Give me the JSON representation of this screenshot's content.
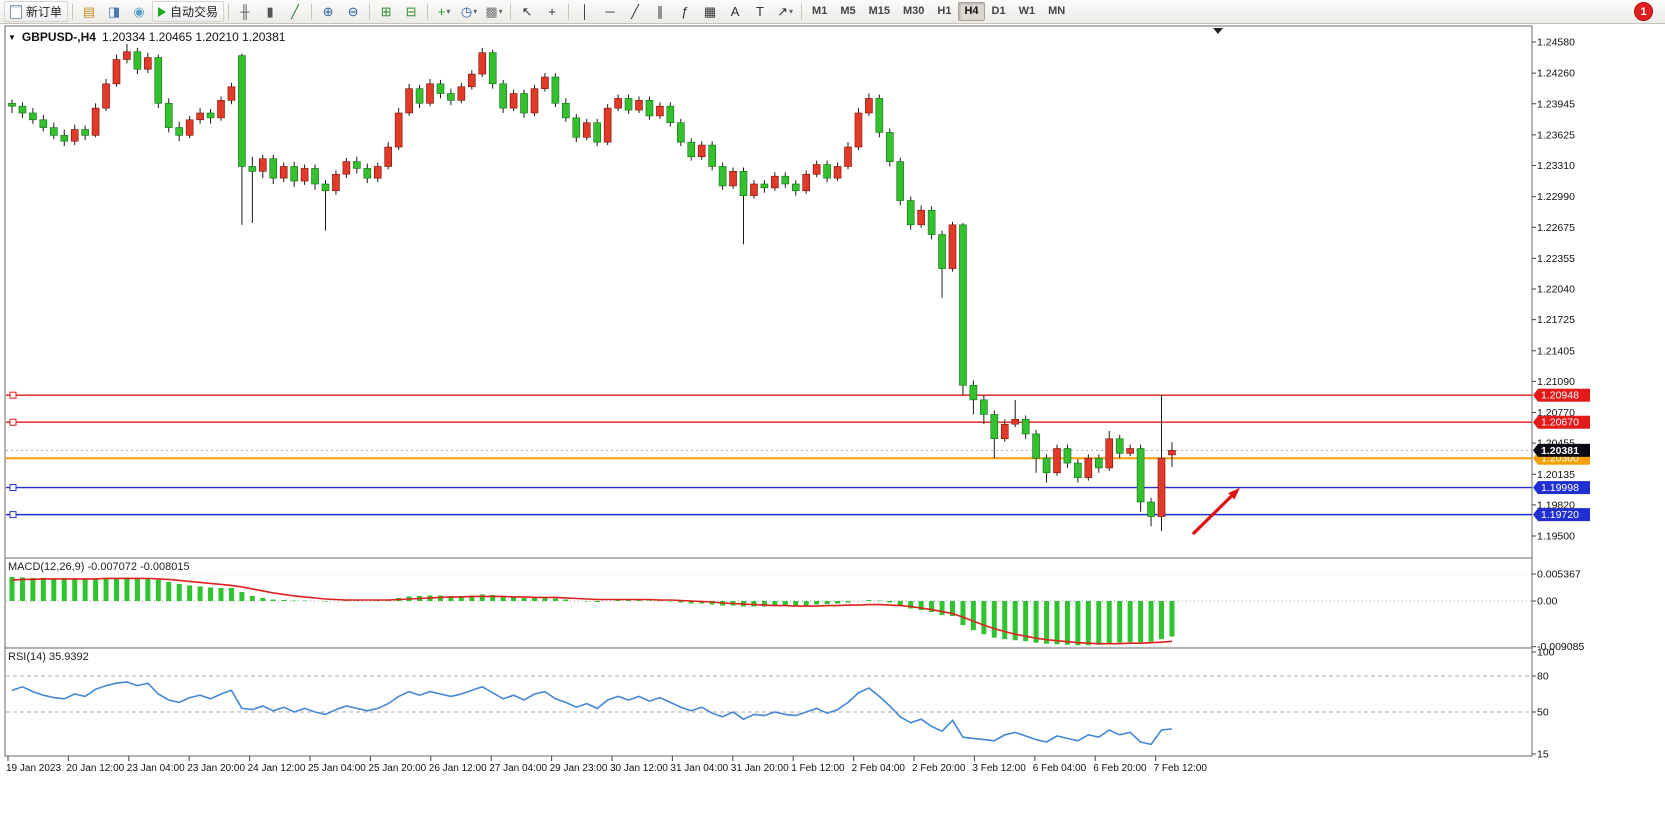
{
  "toolbar": {
    "items": [
      {
        "t": "btn",
        "name": "new-order-button",
        "label": "新订单",
        "icon": "page"
      },
      {
        "t": "sep"
      },
      {
        "t": "icon",
        "name": "charts-stack-icon",
        "g": "▤",
        "c": "#c79028"
      },
      {
        "t": "icon",
        "name": "market-watch-icon",
        "g": "◨",
        "c": "#4a7ab5"
      },
      {
        "t": "icon",
        "name": "navigator-icon",
        "g": "◉",
        "c": "#58a0c8"
      },
      {
        "t": "btn",
        "name": "autotrading-button",
        "label": "自动交易",
        "icon": "play"
      },
      {
        "t": "sep"
      },
      {
        "t": "icon",
        "name": "bar-chart-icon",
        "g": "╫",
        "c": "#555"
      },
      {
        "t": "icon",
        "name": "candlestick-chart-icon",
        "g": "▮",
        "c": "#555"
      },
      {
        "t": "icon",
        "name": "line-chart-icon",
        "g": "╱",
        "c": "#2e7d32"
      },
      {
        "t": "sep"
      },
      {
        "t": "icon",
        "name": "zoom-in-icon",
        "g": "⊕",
        "c": "#2b5fa5"
      },
      {
        "t": "icon",
        "name": "zoom-out-icon",
        "g": "⊖",
        "c": "#2b5fa5"
      },
      {
        "t": "sep"
      },
      {
        "t": "icon",
        "name": "tile-windows-icon",
        "g": "⊞",
        "c": "#2e8b2e"
      },
      {
        "t": "icon",
        "name": "cascade-windows-icon",
        "g": "⊟",
        "c": "#2e8b2e"
      },
      {
        "t": "sep"
      },
      {
        "t": "icon",
        "name": "add-indicator-icon",
        "g": "+",
        "c": "#1fa01f",
        "dd": true
      },
      {
        "t": "icon",
        "name": "period-icon",
        "g": "◷",
        "c": "#2b5fa5",
        "dd": true
      },
      {
        "t": "icon",
        "name": "template-icon",
        "g": "▩",
        "c": "#777",
        "dd": true
      },
      {
        "t": "sep"
      },
      {
        "t": "icon",
        "name": "cursor-icon",
        "g": "↖",
        "c": "#333"
      },
      {
        "t": "icon",
        "name": "crosshair-icon",
        "g": "+",
        "c": "#333"
      },
      {
        "t": "sep"
      },
      {
        "t": "icon",
        "name": "vertical-line-icon",
        "g": "│",
        "c": "#333"
      },
      {
        "t": "icon",
        "name": "horizontal-line-icon",
        "g": "─",
        "c": "#333"
      },
      {
        "t": "icon",
        "name": "trendline-icon",
        "g": "╱",
        "c": "#333"
      },
      {
        "t": "icon",
        "name": "equidistant-channel-icon",
        "g": "∥",
        "c": "#333"
      },
      {
        "t": "icon",
        "name": "fibonacci-icon",
        "g": "ƒ",
        "c": "#333"
      },
      {
        "t": "icon",
        "name": "shapes-icon",
        "g": "▦",
        "c": "#333"
      },
      {
        "t": "icon",
        "name": "text-icon",
        "g": "A",
        "c": "#333"
      },
      {
        "t": "icon",
        "name": "text-label-icon",
        "g": "T",
        "c": "#333"
      },
      {
        "t": "icon",
        "name": "arrows-tool-icon",
        "g": "↗",
        "c": "#333",
        "dd": true
      },
      {
        "t": "sep"
      }
    ],
    "timeframes": [
      "M1",
      "M5",
      "M15",
      "M30",
      "H1",
      "H4",
      "D1",
      "W1",
      "MN"
    ],
    "active_timeframe": "H4",
    "notification_count": "1"
  },
  "chart": {
    "symbol_header": "GBPUSD-,H4",
    "ohlc_readout": "1.20334 1.20465 1.20210 1.20381",
    "price_axis_labels": [
      "1.24580",
      "1.24260",
      "1.23945",
      "1.23625",
      "1.23310",
      "1.22990",
      "1.22675",
      "1.22355",
      "1.22040",
      "1.21725",
      "1.21405",
      "1.21090",
      "1.20770",
      "1.20455",
      "1.20135",
      "1.19820",
      "1.19500"
    ],
    "time_axis_labels": [
      "19 Jan 2023",
      "20 Jan 12:00",
      "23 Jan 04:00",
      "23 Jan 20:00",
      "24 Jan 12:00",
      "25 Jan 04:00",
      "25 Jan 20:00",
      "26 Jan 12:00",
      "27 Jan 04:00",
      "29 Jan 23:00",
      "30 Jan 12:00",
      "31 Jan 04:00",
      "31 Jan 20:00",
      "1 Feb 12:00",
      "2 Feb 04:00",
      "2 Feb 20:00",
      "3 Feb 12:00",
      "6 Feb 04:00",
      "6 Feb 20:00",
      "7 Feb 12:00"
    ],
    "hlines": [
      {
        "price": 1.20948,
        "label": "1.20948",
        "color": "#e21a1a"
      },
      {
        "price": 1.2067,
        "label": "1.20670",
        "color": "#e21a1a"
      },
      {
        "price": 1.203,
        "label": "1.20300",
        "color": "#f0a000"
      },
      {
        "price": 1.19998,
        "label": "1.19998",
        "color": "#2030d0"
      },
      {
        "price": 1.1972,
        "label": "1.19720",
        "color": "#2030d0"
      }
    ],
    "current_price": {
      "value": 1.20381,
      "label": "1.20381",
      "box_color": "#0a0a14"
    }
  },
  "chart_data": {
    "type": "candlestick",
    "symbol": "GBPUSD",
    "timeframe": "H4",
    "up_color": "#e23a28",
    "down_color": "#35c02f",
    "price_range": [
      1.195,
      1.2458
    ],
    "candles": [
      [
        1.2395,
        1.2399,
        1.2385,
        1.2392
      ],
      [
        1.2392,
        1.2396,
        1.238,
        1.2385
      ],
      [
        1.2385,
        1.239,
        1.2374,
        1.2378
      ],
      [
        1.2378,
        1.2383,
        1.2366,
        1.237
      ],
      [
        1.237,
        1.2375,
        1.2358,
        1.2362
      ],
      [
        1.2362,
        1.2368,
        1.2351,
        1.2356
      ],
      [
        1.2356,
        1.2373,
        1.2352,
        1.2368
      ],
      [
        1.2368,
        1.2372,
        1.2357,
        1.2362
      ],
      [
        1.2362,
        1.2395,
        1.236,
        1.239
      ],
      [
        1.239,
        1.242,
        1.2387,
        1.2415
      ],
      [
        1.2415,
        1.2445,
        1.2412,
        1.244
      ],
      [
        1.244,
        1.2456,
        1.2436,
        1.2448
      ],
      [
        1.2448,
        1.2452,
        1.2425,
        1.243
      ],
      [
        1.243,
        1.2447,
        1.2426,
        1.2442
      ],
      [
        1.2442,
        1.2445,
        1.239,
        1.2395
      ],
      [
        1.2395,
        1.24,
        1.2365,
        1.237
      ],
      [
        1.237,
        1.2376,
        1.2356,
        1.2362
      ],
      [
        1.2362,
        1.2382,
        1.2359,
        1.2378
      ],
      [
        1.2378,
        1.239,
        1.2374,
        1.2385
      ],
      [
        1.2385,
        1.2389,
        1.2374,
        1.238
      ],
      [
        1.238,
        1.2402,
        1.2377,
        1.2398
      ],
      [
        1.2398,
        1.2416,
        1.2394,
        1.2412
      ],
      [
        1.2444,
        1.2446,
        1.227,
        1.233
      ],
      [
        1.233,
        1.234,
        1.2272,
        1.2325
      ],
      [
        1.2325,
        1.2342,
        1.2318,
        1.2338
      ],
      [
        1.2338,
        1.2342,
        1.2312,
        1.2318
      ],
      [
        1.2318,
        1.2334,
        1.2314,
        1.233
      ],
      [
        1.233,
        1.2335,
        1.2309,
        1.2315
      ],
      [
        1.2315,
        1.2332,
        1.2311,
        1.2328
      ],
      [
        1.2328,
        1.2332,
        1.2306,
        1.2312
      ],
      [
        1.2312,
        1.2316,
        1.2264,
        1.2305
      ],
      [
        1.2305,
        1.2326,
        1.2301,
        1.2322
      ],
      [
        1.2322,
        1.2339,
        1.2318,
        1.2335
      ],
      [
        1.2335,
        1.234,
        1.2323,
        1.2328
      ],
      [
        1.2328,
        1.2333,
        1.2313,
        1.2318
      ],
      [
        1.2318,
        1.2334,
        1.2314,
        1.233
      ],
      [
        1.233,
        1.2355,
        1.2327,
        1.235
      ],
      [
        1.235,
        1.239,
        1.2347,
        1.2385
      ],
      [
        1.2385,
        1.2415,
        1.2382,
        1.241
      ],
      [
        1.241,
        1.2414,
        1.239,
        1.2395
      ],
      [
        1.2395,
        1.242,
        1.2392,
        1.2415
      ],
      [
        1.2415,
        1.2419,
        1.24,
        1.2405
      ],
      [
        1.2405,
        1.241,
        1.2393,
        1.2398
      ],
      [
        1.2398,
        1.2416,
        1.2395,
        1.2412
      ],
      [
        1.2412,
        1.2429,
        1.2409,
        1.2425
      ],
      [
        1.2425,
        1.2452,
        1.2422,
        1.2447
      ],
      [
        1.2447,
        1.245,
        1.241,
        1.2415
      ],
      [
        1.2415,
        1.2419,
        1.2385,
        1.239
      ],
      [
        1.239,
        1.2409,
        1.2387,
        1.2405
      ],
      [
        1.2405,
        1.2409,
        1.238,
        1.2385
      ],
      [
        1.2385,
        1.2414,
        1.2382,
        1.241
      ],
      [
        1.241,
        1.2426,
        1.2407,
        1.2422
      ],
      [
        1.2422,
        1.2426,
        1.2391,
        1.2395
      ],
      [
        1.2395,
        1.24,
        1.2376,
        1.238
      ],
      [
        1.238,
        1.2384,
        1.2355,
        1.236
      ],
      [
        1.236,
        1.2379,
        1.2357,
        1.2375
      ],
      [
        1.2375,
        1.2379,
        1.2351,
        1.2355
      ],
      [
        1.2355,
        1.2394,
        1.2352,
        1.239
      ],
      [
        1.239,
        1.2404,
        1.2387,
        1.24
      ],
      [
        1.24,
        1.2404,
        1.2384,
        1.2388
      ],
      [
        1.2388,
        1.2402,
        1.2385,
        1.2398
      ],
      [
        1.2398,
        1.2402,
        1.2378,
        1.2382
      ],
      [
        1.2382,
        1.2396,
        1.2379,
        1.2392
      ],
      [
        1.2392,
        1.2396,
        1.2371,
        1.2375
      ],
      [
        1.2375,
        1.2379,
        1.2351,
        1.2355
      ],
      [
        1.2355,
        1.2359,
        1.2336,
        1.234
      ],
      [
        1.234,
        1.2356,
        1.2337,
        1.2352
      ],
      [
        1.2352,
        1.2356,
        1.2326,
        1.233
      ],
      [
        1.233,
        1.2334,
        1.2306,
        1.231
      ],
      [
        1.231,
        1.2329,
        1.2307,
        1.2325
      ],
      [
        1.2325,
        1.2329,
        1.225,
        1.23
      ],
      [
        1.23,
        1.2316,
        1.2297,
        1.2312
      ],
      [
        1.2312,
        1.2316,
        1.2303,
        1.2308
      ],
      [
        1.2308,
        1.2324,
        1.2305,
        1.232
      ],
      [
        1.232,
        1.2324,
        1.2308,
        1.2312
      ],
      [
        1.2312,
        1.2316,
        1.23,
        1.2305
      ],
      [
        1.2305,
        1.2326,
        1.2302,
        1.2322
      ],
      [
        1.2322,
        1.2336,
        1.2319,
        1.2332
      ],
      [
        1.2332,
        1.2336,
        1.2314,
        1.2318
      ],
      [
        1.2318,
        1.2334,
        1.2315,
        1.233
      ],
      [
        1.233,
        1.2355,
        1.2327,
        1.235
      ],
      [
        1.235,
        1.239,
        1.2347,
        1.2385
      ],
      [
        1.2385,
        1.2405,
        1.2382,
        1.24
      ],
      [
        1.24,
        1.2404,
        1.236,
        1.2365
      ],
      [
        1.2365,
        1.2369,
        1.233,
        1.2335
      ],
      [
        1.2335,
        1.2339,
        1.229,
        1.2295
      ],
      [
        1.2295,
        1.2299,
        1.2265,
        1.227
      ],
      [
        1.227,
        1.229,
        1.2267,
        1.2285
      ],
      [
        1.2285,
        1.2289,
        1.2255,
        1.226
      ],
      [
        1.226,
        1.2264,
        1.2195,
        1.2225
      ],
      [
        1.2225,
        1.2273,
        1.2222,
        1.227
      ],
      [
        1.227,
        1.2272,
        1.2095,
        1.2105
      ],
      [
        1.2105,
        1.211,
        1.2075,
        1.209
      ],
      [
        1.209,
        1.2095,
        1.2065,
        1.2075
      ],
      [
        1.2075,
        1.2079,
        1.203,
        1.205
      ],
      [
        1.205,
        1.207,
        1.2047,
        1.2065
      ],
      [
        1.2065,
        1.209,
        1.2062,
        1.207
      ],
      [
        1.207,
        1.2074,
        1.205,
        1.2055
      ],
      [
        1.2055,
        1.2059,
        1.2015,
        1.203
      ],
      [
        1.203,
        1.2034,
        1.2005,
        1.2015
      ],
      [
        1.2015,
        1.2044,
        1.2012,
        1.204
      ],
      [
        1.204,
        1.2044,
        1.202,
        1.2025
      ],
      [
        1.2025,
        1.2029,
        1.2005,
        1.201
      ],
      [
        1.201,
        1.2034,
        1.2007,
        1.203
      ],
      [
        1.203,
        1.2034,
        1.2015,
        1.202
      ],
      [
        1.202,
        1.2058,
        1.2017,
        1.205
      ],
      [
        1.205,
        1.2054,
        1.203,
        1.2035
      ],
      [
        1.2035,
        1.2044,
        1.2032,
        1.204
      ],
      [
        1.204,
        1.2044,
        1.1975,
        1.1985
      ],
      [
        1.1985,
        1.1989,
        1.196,
        1.197
      ],
      [
        1.197,
        1.2095,
        1.1955,
        1.203
      ],
      [
        1.20334,
        1.20465,
        1.2021,
        1.20381
      ]
    ],
    "macd": {
      "name_label": "MACD(12,26,9)",
      "values_label": "-0.007072 -0.008015",
      "axis_labels": [
        "0.005367",
        "0.00",
        "-0.009085"
      ],
      "histogram": [
        0.0048,
        0.0047,
        0.0046,
        0.0046,
        0.0045,
        0.0044,
        0.0043,
        0.0043,
        0.0044,
        0.0045,
        0.0046,
        0.0047,
        0.0046,
        0.0045,
        0.0042,
        0.0038,
        0.0034,
        0.0031,
        0.0029,
        0.0027,
        0.0026,
        0.0026,
        0.0018,
        0.001,
        0.0006,
        0.0003,
        0.0002,
        0.0001,
        0.0001,
        0.0,
        -0.0001,
        0.0,
        0.0001,
        0.0001,
        0.0,
        0.0001,
        0.0003,
        0.0006,
        0.0009,
        0.001,
        0.0011,
        0.0011,
        0.001,
        0.001,
        0.0011,
        0.0013,
        0.0012,
        0.0009,
        0.0008,
        0.0006,
        0.0006,
        0.0007,
        0.0005,
        0.0003,
        0.0,
        -0.0001,
        -0.0002,
        0.0,
        0.0002,
        0.0002,
        0.0002,
        0.0001,
        0.0001,
        -0.0001,
        -0.0003,
        -0.0005,
        -0.0005,
        -0.0007,
        -0.0009,
        -0.0009,
        -0.0011,
        -0.0011,
        -0.0011,
        -0.001,
        -0.001,
        -0.001,
        -0.0009,
        -0.0007,
        -0.0006,
        -0.0005,
        -0.0003,
        0.0,
        0.0002,
        0.0001,
        -0.0003,
        -0.0009,
        -0.0015,
        -0.0018,
        -0.0022,
        -0.0028,
        -0.003,
        -0.0048,
        -0.0058,
        -0.0066,
        -0.0073,
        -0.0076,
        -0.0078,
        -0.008,
        -0.0083,
        -0.0085,
        -0.0086,
        -0.0087,
        -0.0088,
        -0.0088,
        -0.0087,
        -0.0085,
        -0.0083,
        -0.0082,
        -0.0082,
        -0.0081,
        -0.0076,
        -0.007072
      ],
      "signal": [
        0.0042,
        0.0043,
        0.0043,
        0.0044,
        0.0044,
        0.0044,
        0.0044,
        0.0044,
        0.0044,
        0.0045,
        0.0045,
        0.0045,
        0.0045,
        0.0045,
        0.0044,
        0.0043,
        0.0041,
        0.0039,
        0.0037,
        0.0035,
        0.0033,
        0.0031,
        0.0028,
        0.0024,
        0.002,
        0.0016,
        0.0013,
        0.001,
        0.0008,
        0.0006,
        0.0004,
        0.0003,
        0.0002,
        0.0002,
        0.0002,
        0.0002,
        0.0002,
        0.0003,
        0.0004,
        0.0005,
        0.0006,
        0.0007,
        0.0008,
        0.0008,
        0.0009,
        0.0009,
        0.0009,
        0.0009,
        0.0008,
        0.0008,
        0.0007,
        0.0007,
        0.0007,
        0.0006,
        0.0005,
        0.0004,
        0.0003,
        0.0003,
        0.0003,
        0.0003,
        0.0003,
        0.0003,
        0.0002,
        0.0002,
        0.0001,
        0.0,
        -0.0001,
        -0.0002,
        -0.0004,
        -0.0005,
        -0.0006,
        -0.0007,
        -0.0008,
        -0.0009,
        -0.0009,
        -0.001,
        -0.001,
        -0.001,
        -0.0009,
        -0.0009,
        -0.0008,
        -0.0008,
        -0.0007,
        -0.0007,
        -0.0008,
        -0.0009,
        -0.0011,
        -0.0014,
        -0.0017,
        -0.0021,
        -0.0025,
        -0.0032,
        -0.004,
        -0.0048,
        -0.0055,
        -0.0061,
        -0.0066,
        -0.007,
        -0.0074,
        -0.0077,
        -0.0079,
        -0.0081,
        -0.0083,
        -0.0084,
        -0.0085,
        -0.0085,
        -0.0085,
        -0.0084,
        -0.0084,
        -0.0083,
        -0.0082,
        -0.008015
      ]
    },
    "rsi": {
      "name_label": "RSI(14)",
      "value_label": "35.9392",
      "axis_labels": [
        "100",
        "80",
        "50",
        "15"
      ],
      "values": [
        68,
        71,
        67,
        64,
        62,
        61,
        65,
        63,
        69,
        72,
        74,
        75,
        72,
        74,
        65,
        60,
        58,
        62,
        64,
        61,
        65,
        68,
        53,
        52,
        55,
        51,
        54,
        50,
        53,
        50,
        48,
        52,
        55,
        53,
        51,
        53,
        57,
        63,
        67,
        64,
        67,
        65,
        63,
        65,
        68,
        71,
        66,
        61,
        64,
        60,
        65,
        67,
        61,
        58,
        54,
        57,
        53,
        60,
        63,
        60,
        63,
        59,
        62,
        58,
        54,
        51,
        54,
        49,
        46,
        50,
        44,
        48,
        47,
        50,
        48,
        47,
        50,
        53,
        49,
        52,
        58,
        66,
        70,
        63,
        55,
        46,
        41,
        44,
        38,
        34,
        43,
        29,
        28,
        27,
        26,
        31,
        33,
        30,
        27,
        25,
        30,
        28,
        26,
        31,
        29,
        35,
        31,
        33,
        25,
        23,
        35,
        35.94
      ]
    },
    "annotations": [
      {
        "type": "arrow",
        "x_index_from": 113,
        "price_from": 1.1952,
        "x_index_to": 117.5,
        "price_to": 1.19995,
        "color": "#e01010"
      }
    ]
  }
}
